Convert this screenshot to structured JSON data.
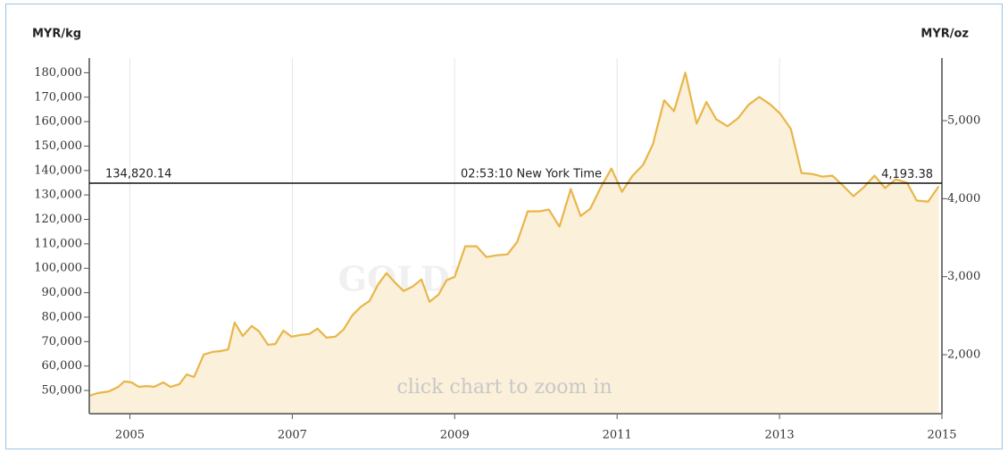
{
  "chart_data": {
    "type": "area",
    "ylabel": "MYR/kg",
    "y2label": "MYR/oz",
    "watermark": "GOLDPRICE.ORG",
    "hint": "click chart to zoom in",
    "crosshair": {
      "value": 134820.14,
      "label": "134,820.14",
      "y2_value": 4193.38,
      "y2_label": "4,193.38",
      "time_label": "02:53:10 New York Time"
    },
    "xlim": [
      2004.5,
      2015
    ],
    "xticks": [
      2005,
      2007,
      2009,
      2011,
      2013,
      2015
    ],
    "ylim": [
      40500,
      186000
    ],
    "yticks": [
      {
        "value": 50000,
        "label": "50,000"
      },
      {
        "value": 60000,
        "label": "60,000"
      },
      {
        "value": 70000,
        "label": "70,000"
      },
      {
        "value": 80000,
        "label": "80,000"
      },
      {
        "value": 90000,
        "label": "90,000"
      },
      {
        "value": 100000,
        "label": "100,000"
      },
      {
        "value": 110000,
        "label": "110,000"
      },
      {
        "value": 120000,
        "label": "120,000"
      },
      {
        "value": 130000,
        "label": "130,000"
      },
      {
        "value": 140000,
        "label": "140,000"
      },
      {
        "value": 150000,
        "label": "150,000"
      },
      {
        "value": 160000,
        "label": "160,000"
      },
      {
        "value": 170000,
        "label": "170,000"
      },
      {
        "value": 180000,
        "label": "180,000"
      }
    ],
    "y2lim": [
      1244,
      5802
    ],
    "y2ticks": [
      {
        "value": 2000,
        "label": "2,000"
      },
      {
        "value": 3000,
        "label": "3,000"
      },
      {
        "value": 4000,
        "label": "4,000"
      },
      {
        "value": 5000,
        "label": "5,000"
      }
    ],
    "grid": true,
    "series": [
      {
        "color": "#e8b64a",
        "fill": "#fbf0da",
        "x": [
          2004.5,
          2004.6,
          2004.74,
          2004.86,
          2004.93,
          2005.02,
          2005.11,
          2005.21,
          2005.3,
          2005.41,
          2005.5,
          2005.61,
          2005.7,
          2005.79,
          2005.91,
          2006.02,
          2006.11,
          2006.21,
          2006.29,
          2006.39,
          2006.5,
          2006.59,
          2006.7,
          2006.79,
          2006.89,
          2006.99,
          2007.1,
          2007.21,
          2007.31,
          2007.42,
          2007.53,
          2007.63,
          2007.74,
          2007.85,
          2007.95,
          2008.06,
          2008.16,
          2008.26,
          2008.37,
          2008.48,
          2008.59,
          2008.69,
          2008.8,
          2008.9,
          2009.0,
          2009.13,
          2009.27,
          2009.39,
          2009.52,
          2009.65,
          2009.77,
          2009.9,
          2010.04,
          2010.16,
          2010.29,
          2010.43,
          2010.55,
          2010.67,
          2010.8,
          2010.93,
          2011.06,
          2011.19,
          2011.32,
          2011.44,
          2011.58,
          2011.7,
          2011.84,
          2011.98,
          2012.1,
          2012.22,
          2012.36,
          2012.49,
          2012.62,
          2012.75,
          2012.89,
          2013.01,
          2013.14,
          2013.27,
          2013.4,
          2013.53,
          2013.65,
          2013.78,
          2013.91,
          2014.04,
          2014.17,
          2014.3,
          2014.43,
          2014.57,
          2014.69,
          2014.83,
          2014.96
        ],
        "values": [
          47800,
          48900,
          49600,
          51500,
          53700,
          53300,
          51500,
          51800,
          51500,
          53300,
          51500,
          52600,
          56600,
          55500,
          64700,
          65800,
          66100,
          66800,
          77800,
          72300,
          76400,
          74200,
          68700,
          69000,
          74500,
          72000,
          72700,
          73100,
          75300,
          71600,
          72000,
          74900,
          80800,
          84400,
          86600,
          93600,
          98000,
          94300,
          90700,
          92500,
          95400,
          86300,
          89200,
          95100,
          96500,
          109000,
          109000,
          104600,
          105300,
          105700,
          110800,
          123300,
          123300,
          124000,
          117000,
          132400,
          121400,
          124400,
          133200,
          140800,
          131300,
          137900,
          142300,
          150700,
          168700,
          164300,
          180000,
          159200,
          168000,
          161000,
          158100,
          161400,
          166900,
          170100,
          166900,
          163200,
          157000,
          139000,
          138600,
          137500,
          137900,
          133900,
          129500,
          133200,
          137900,
          132800,
          136400,
          135000,
          127700,
          127300,
          133500
        ]
      }
    ]
  }
}
